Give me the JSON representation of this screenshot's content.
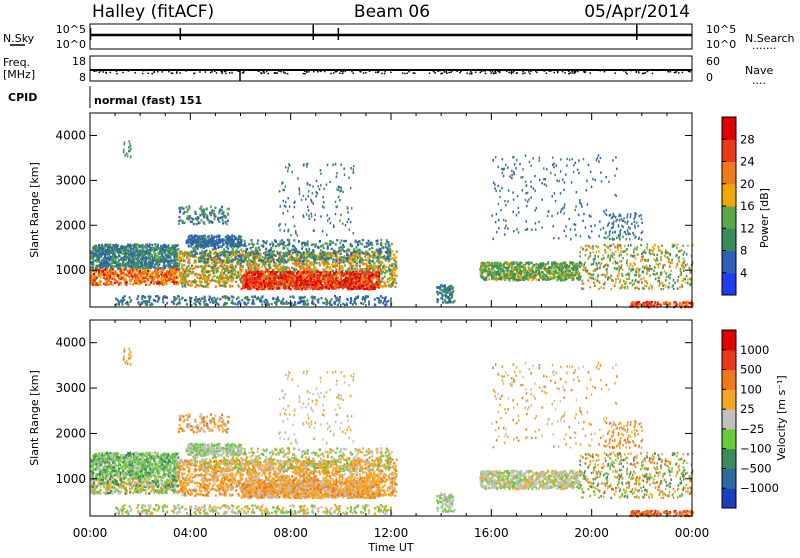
{
  "header": {
    "station": "Halley (fitACF)",
    "beam": "Beam 06",
    "date": "05/Apr/2014"
  },
  "side_labels": {
    "nsky": "N.Sky",
    "freq": "Freq.",
    "freq_unit": "[MHz]",
    "cpid": "CPID",
    "nsearch": "N.Search",
    "nave": "Nave",
    "dotted": "·······",
    "dotted_short": "····"
  },
  "cpid_text": "normal (fast) 151",
  "panel_ticks": {
    "nsky_left": [
      "10^5",
      "10^0"
    ],
    "nsky_right": [
      "10^5",
      "10^0"
    ],
    "freq_left": [
      "18",
      "8"
    ],
    "nave_right": [
      "60",
      "0"
    ]
  },
  "chart_data": [
    {
      "type": "heatmap",
      "name": "power",
      "ylabel": "Slant Range [km]",
      "xlabel": "",
      "x_ticks": [
        "00:00",
        "04:00",
        "08:00",
        "12:00",
        "16:00",
        "20:00",
        "00:00"
      ],
      "x_range_hours": [
        0,
        24
      ],
      "y_ticks": [
        1000,
        2000,
        3000,
        4000
      ],
      "ylim": [
        180,
        4500
      ],
      "colorbar": {
        "label": "Power [dB]",
        "ticks": [
          "4",
          "8",
          "12",
          "16",
          "20",
          "24",
          "28"
        ],
        "colors": [
          "#1f3df0",
          "#2f5fb8",
          "#3b8a5a",
          "#5aa84a",
          "#f0a800",
          "#f07a1a",
          "#e83a18",
          "#e00000"
        ]
      }
    },
    {
      "type": "heatmap",
      "name": "velocity",
      "ylabel": "Slant Range [km]",
      "xlabel": "Time UT",
      "x_ticks": [
        "00:00",
        "04:00",
        "08:00",
        "12:00",
        "16:00",
        "20:00",
        "00:00"
      ],
      "x_range_hours": [
        0,
        24
      ],
      "y_ticks": [
        1000,
        2000,
        3000,
        4000
      ],
      "ylim": [
        180,
        4500
      ],
      "colorbar": {
        "label": "Velocity [m s⁻¹]",
        "ticks": [
          "1000",
          "500",
          "100",
          "25",
          "−25",
          "−100",
          "−500",
          "−1000"
        ],
        "colors": [
          "#1c3fbf",
          "#2e6aa0",
          "#3f8a5a",
          "#6acb3a",
          "#c0c0c0",
          "#f5a623",
          "#f07818",
          "#e83a1a",
          "#e00000"
        ]
      }
    }
  ]
}
